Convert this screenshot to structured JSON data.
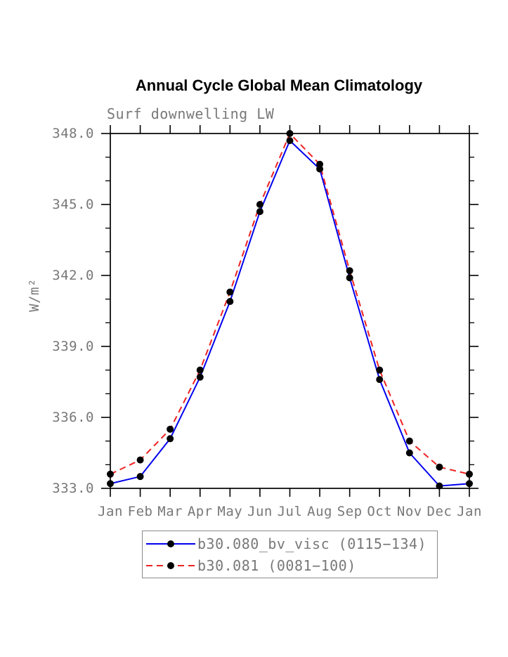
{
  "chart_data": {
    "type": "line",
    "title": "Annual Cycle Global Mean Climatology",
    "subtitle": "Surf downwelling LW",
    "ylabel": "W/m²",
    "xlabel": "",
    "x_categories": [
      "Jan",
      "Feb",
      "Mar",
      "Apr",
      "May",
      "Jun",
      "Jul",
      "Aug",
      "Sep",
      "Oct",
      "Nov",
      "Dec",
      "Jan"
    ],
    "ylim": [
      333.0,
      348.0
    ],
    "y_major_ticks": [
      333.0,
      336.0,
      339.0,
      342.0,
      345.0,
      348.0
    ],
    "y_minor_step": 1.0,
    "grid": false,
    "legend_position": "bottom",
    "series": [
      {
        "name": "b30.080_bv_visc (0115−134)",
        "color": "#0000ee",
        "style": "solid",
        "marker": "circle",
        "marker_color": "#000000",
        "values": [
          333.2,
          333.5,
          335.1,
          337.7,
          340.9,
          344.7,
          347.7,
          346.5,
          341.9,
          337.6,
          334.5,
          333.1,
          333.2
        ]
      },
      {
        "name": "b30.081 (0081−100)",
        "color": "#ee2222",
        "style": "dashed",
        "marker": "circle",
        "marker_color": "#000000",
        "values": [
          333.6,
          334.2,
          335.5,
          338.0,
          341.3,
          345.0,
          348.0,
          346.7,
          342.2,
          338.0,
          335.0,
          333.9,
          333.6
        ]
      }
    ],
    "colors": {
      "axis": "#000000",
      "tick_label": "#787878",
      "title": "#000000",
      "legend_border": "#8a8a8a"
    }
  }
}
